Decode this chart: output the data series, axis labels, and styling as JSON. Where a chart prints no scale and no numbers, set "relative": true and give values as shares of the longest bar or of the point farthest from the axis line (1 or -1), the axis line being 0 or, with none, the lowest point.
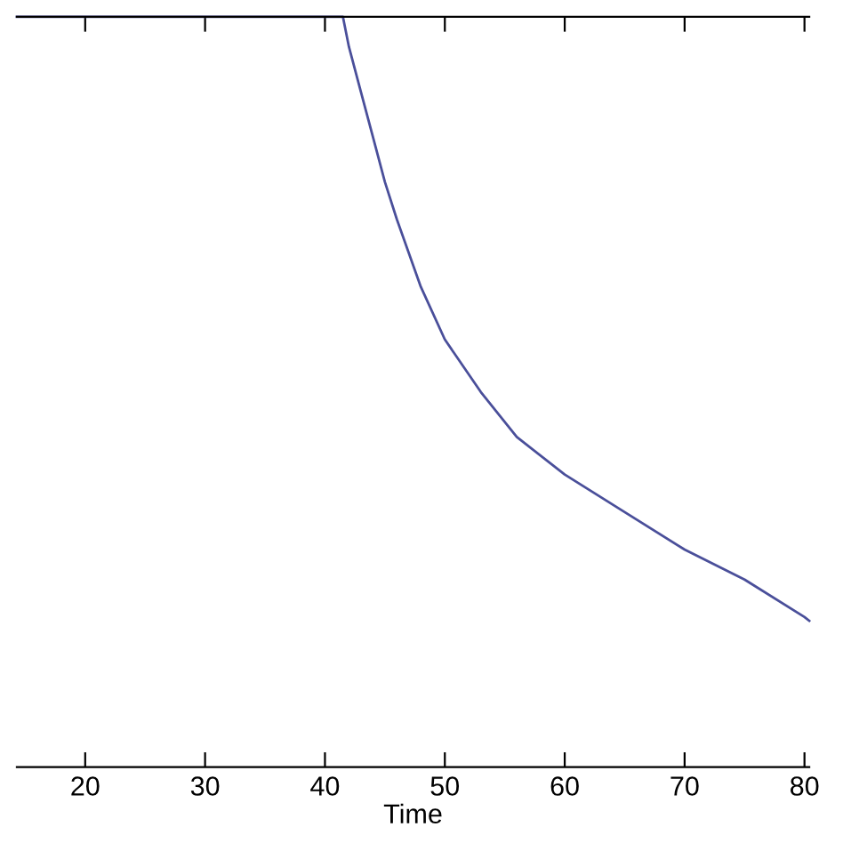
{
  "chart_data": {
    "type": "line",
    "xlabel": "Time",
    "relative": true,
    "x": [
      14.3,
      41.5,
      42,
      43,
      44,
      45,
      46,
      48,
      50,
      53,
      56,
      60,
      65,
      70,
      75,
      80,
      80.4
    ],
    "series": [
      {
        "color": "#4a4f9a",
        "values": [
          1,
          1,
          0.96,
          0.9,
          0.84,
          0.78,
          0.73,
          0.64,
          0.57,
          0.5,
          0.44,
          0.39,
          0.34,
          0.29,
          0.25,
          0.2,
          0.195
        ]
      }
    ],
    "xlim": [
      14.3,
      80.4
    ],
    "xticks": [
      20,
      30,
      40,
      50,
      60,
      70,
      80
    ],
    "tick_labels": "x",
    "marker": "none",
    "line_style": "solid"
  }
}
